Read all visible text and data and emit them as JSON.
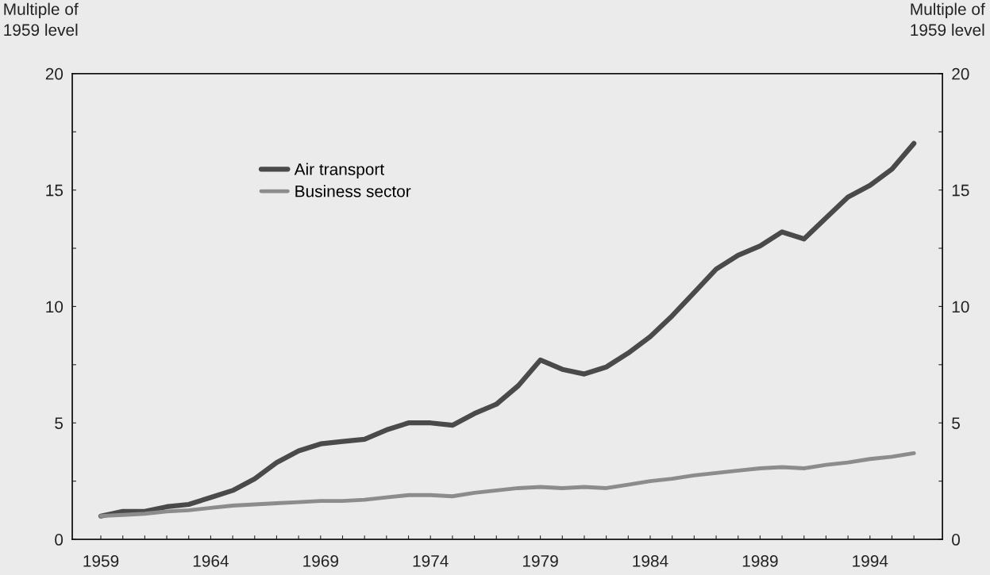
{
  "chart_data": {
    "type": "line",
    "ylabel": "Multiple of\n1959 level",
    "y2label": "Multiple of\n1959 level",
    "x": [
      1959,
      1960,
      1961,
      1962,
      1963,
      1964,
      1965,
      1966,
      1967,
      1968,
      1969,
      1970,
      1971,
      1972,
      1973,
      1974,
      1975,
      1976,
      1977,
      1978,
      1979,
      1980,
      1981,
      1982,
      1983,
      1984,
      1985,
      1986,
      1987,
      1988,
      1989,
      1990,
      1991,
      1992,
      1993,
      1994,
      1995,
      1996
    ],
    "series": [
      {
        "name": "Air transport",
        "color": "#4a4a4a",
        "values": [
          1.0,
          1.2,
          1.2,
          1.4,
          1.5,
          1.8,
          2.1,
          2.6,
          3.3,
          3.8,
          4.1,
          4.2,
          4.3,
          4.7,
          5.0,
          5.0,
          4.9,
          5.4,
          5.8,
          6.6,
          7.7,
          7.3,
          7.1,
          7.4,
          8.0,
          8.7,
          9.6,
          10.6,
          11.6,
          12.2,
          12.6,
          13.2,
          12.9,
          13.8,
          14.7,
          15.2,
          15.9,
          17.0
        ]
      },
      {
        "name": "Business sector",
        "color": "#8c8c8c",
        "values": [
          1.0,
          1.05,
          1.1,
          1.2,
          1.25,
          1.35,
          1.45,
          1.5,
          1.55,
          1.6,
          1.65,
          1.65,
          1.7,
          1.8,
          1.9,
          1.9,
          1.85,
          2.0,
          2.1,
          2.2,
          2.25,
          2.2,
          2.25,
          2.2,
          2.35,
          2.5,
          2.6,
          2.75,
          2.85,
          2.95,
          3.05,
          3.1,
          3.05,
          3.2,
          3.3,
          3.45,
          3.55,
          3.7
        ]
      }
    ],
    "xlim": [
      1957.7,
      1997.3
    ],
    "xticks": [
      1959,
      {
        "value": 1960,
        "label": null
      },
      {
        "value": 1961,
        "label": null
      },
      {
        "value": 1962,
        "label": null
      },
      {
        "value": 1963,
        "label": null
      },
      1964,
      {
        "value": 1965,
        "label": null
      },
      {
        "value": 1966,
        "label": null
      },
      {
        "value": 1967,
        "label": null
      },
      {
        "value": 1968,
        "label": null
      },
      1969,
      {
        "value": 1970,
        "label": null
      },
      {
        "value": 1971,
        "label": null
      },
      {
        "value": 1972,
        "label": null
      },
      {
        "value": 1973,
        "label": null
      },
      1974,
      {
        "value": 1975,
        "label": null
      },
      {
        "value": 1976,
        "label": null
      },
      {
        "value": 1977,
        "label": null
      },
      {
        "value": 1978,
        "label": null
      },
      1979,
      {
        "value": 1980,
        "label": null
      },
      {
        "value": 1981,
        "label": null
      },
      {
        "value": 1982,
        "label": null
      },
      {
        "value": 1983,
        "label": null
      },
      1984,
      {
        "value": 1985,
        "label": null
      },
      {
        "value": 1986,
        "label": null
      },
      {
        "value": 1987,
        "label": null
      },
      {
        "value": 1988,
        "label": null
      },
      1989,
      {
        "value": 1990,
        "label": null
      },
      {
        "value": 1991,
        "label": null
      },
      {
        "value": 1992,
        "label": null
      },
      {
        "value": 1993,
        "label": null
      },
      1994,
      {
        "value": 1995,
        "label": null
      },
      {
        "value": 1996,
        "label": null
      }
    ],
    "ylim": [
      0,
      20
    ],
    "yticks": [
      0,
      {
        "value": 2.5,
        "label": null
      },
      5,
      {
        "value": 7.5,
        "label": null
      },
      10,
      {
        "value": 12.5,
        "label": null
      },
      15,
      {
        "value": 17.5,
        "label": null
      },
      20
    ],
    "y2lim": [
      0,
      20
    ],
    "y2ticks": [
      0,
      {
        "value": 2.5,
        "label": null
      },
      5,
      {
        "value": 7.5,
        "label": null
      },
      10,
      {
        "value": 12.5,
        "label": null
      },
      15,
      {
        "value": 17.5,
        "label": null
      },
      20
    ],
    "legend": "top left",
    "line_style": "solid"
  }
}
